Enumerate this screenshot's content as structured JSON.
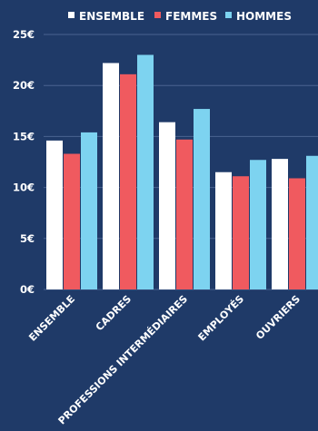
{
  "chart_data": {
    "type": "bar",
    "categories": [
      "ENSEMBLE",
      "CADRES",
      "PROFESSIONS INTERMÉDIAIRES",
      "EMPLOYÉS",
      "OUVRIERS"
    ],
    "series": [
      {
        "name": "ENSEMBLE",
        "values": [
          14.6,
          22.2,
          16.4,
          11.5,
          12.8
        ],
        "color": "#ffffff"
      },
      {
        "name": "FEMMES",
        "values": [
          13.3,
          21.1,
          14.7,
          11.1,
          10.9
        ],
        "color": "#f05a5f"
      },
      {
        "name": "HOMMES",
        "values": [
          15.4,
          23.0,
          17.7,
          12.7,
          13.1
        ],
        "color": "#7dd3f0"
      }
    ],
    "y_ticks": [
      "0€",
      "5€",
      "10€",
      "15€",
      "20€",
      "25€"
    ],
    "ylim": [
      0,
      25
    ],
    "grid": true,
    "legend_position": "top",
    "colors": {
      "background": "#1f3a68",
      "grid": "#4a6390",
      "text": "#ffffff"
    }
  }
}
